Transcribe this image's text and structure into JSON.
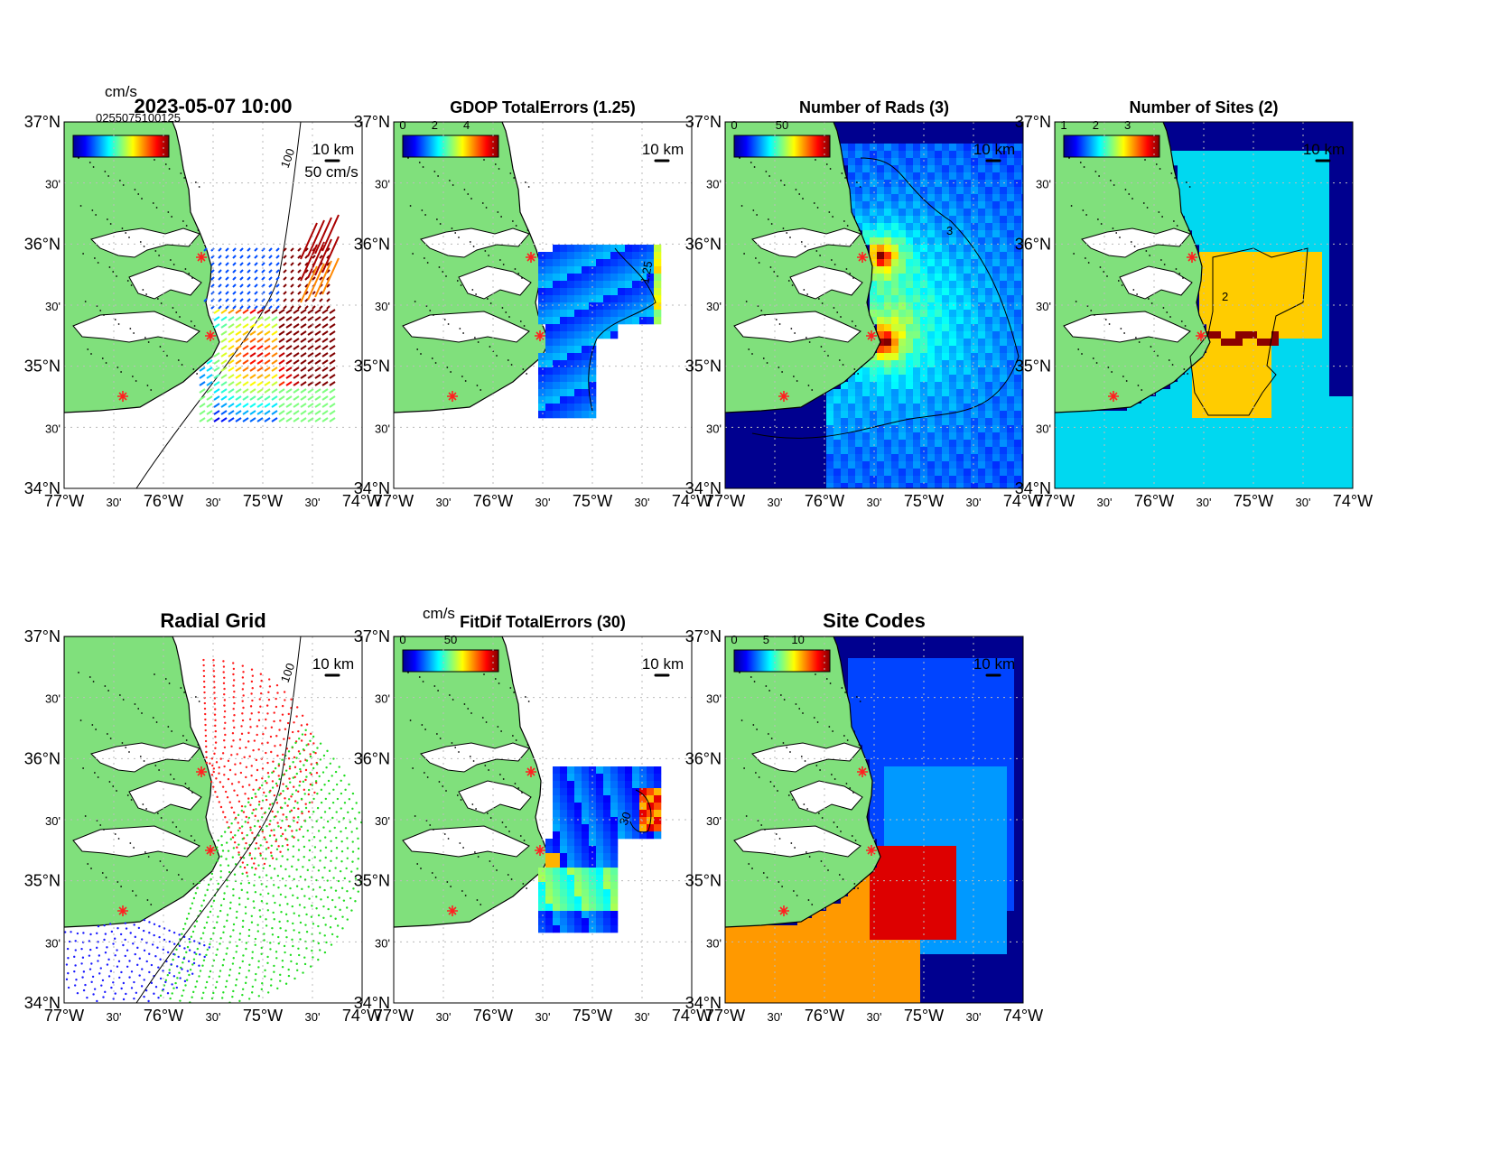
{
  "colors": {
    "land": "#80e07c",
    "ocean": "#ffffff",
    "coastline": "#000000",
    "site_marker": "#ff2020",
    "grid": "#bbbbbb",
    "sites_level_1": "#00d8f0",
    "sites_level_2": "#ffcc00",
    "sites_level_3": "#8b0000",
    "deep_bg": "#00008f",
    "site_code_orange": "#ff9900",
    "site_code_red": "#dd0000",
    "site_code_blue1": "#0044ff",
    "site_code_blue2": "#0099ff",
    "radial_red": "#ff1a1a",
    "radial_green": "#22dd22",
    "radial_blue": "#1a1aff"
  },
  "axes": {
    "lat_labels": [
      "37°N",
      "30'",
      "36°N",
      "30'",
      "35°N",
      "30'",
      "34°N"
    ],
    "lon_labels": [
      "77°W",
      "30'",
      "76°W",
      "30'",
      "75°W",
      "30'",
      "74°W"
    ]
  },
  "scale_bar_label": "10 km",
  "panels": [
    {
      "id": "totals",
      "title": "2023-05-07 10:00",
      "colorbar_unit": "cm/s",
      "colorbar_ticks_overlapping_text": "0255075100125",
      "vector_scale_label": "50 cm/s",
      "isobath_label": "100",
      "sites": [
        "north",
        "middle",
        "south"
      ]
    },
    {
      "id": "gdop",
      "title": "GDOP TotalErrors (1.25)",
      "colorbar_ticks": [
        "0",
        "2",
        "4"
      ],
      "contour_label": "1.25"
    },
    {
      "id": "num-rads",
      "title": "Number of Rads (3)",
      "colorbar_ticks": [
        "0",
        "50"
      ],
      "contour_label": "3"
    },
    {
      "id": "num-sites",
      "title": "Number of Sites (2)",
      "colorbar_ticks": [
        "1",
        "2",
        "3"
      ],
      "contour_label": "2"
    },
    {
      "id": "radial-grid",
      "title": "Radial Grid",
      "isobath_label": "100"
    },
    {
      "id": "fitdif",
      "title": "FitDif TotalErrors (30)",
      "colorbar_unit": "cm/s",
      "colorbar_ticks": [
        "0",
        "50"
      ],
      "contour_label": "30"
    },
    {
      "id": "site-codes",
      "title": "Site Codes",
      "colorbar_ticks": [
        "0",
        "5",
        "10"
      ]
    }
  ]
}
